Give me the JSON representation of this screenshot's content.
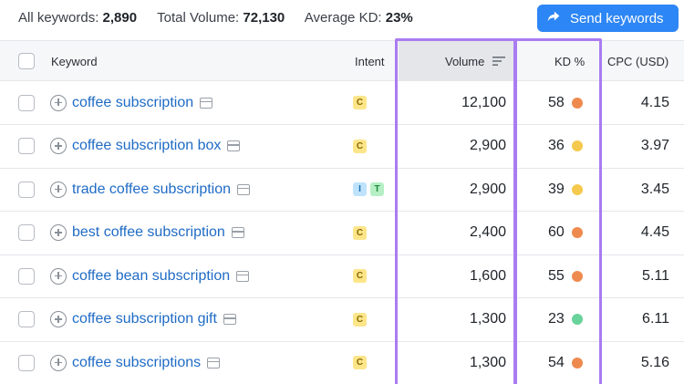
{
  "summary": {
    "all_keywords_label": "All keywords:",
    "all_keywords_value": "2,890",
    "total_volume_label": "Total Volume:",
    "total_volume_value": "72,130",
    "avg_kd_label": "Average KD:",
    "avg_kd_value": "23%"
  },
  "send_button": {
    "label": "Send keywords",
    "icon": "share-arrow-icon",
    "color": "#2d86f5"
  },
  "table": {
    "headers": {
      "keyword": "Keyword",
      "intent": "Intent",
      "volume": "Volume",
      "kd": "KD %",
      "cpc": "CPC (USD)"
    },
    "sort_icon": "sort-descending-icon",
    "highlight_color": "#a97cf1",
    "kd_colors": {
      "orange": "#ef8a4f",
      "yellow": "#f5c94e",
      "green": "#68d39a"
    },
    "rows": [
      {
        "keyword": "coffee subscription",
        "intents": [
          "C"
        ],
        "volume": "12,100",
        "kd": "58",
        "kd_color": "#ef8a4f",
        "cpc": "4.15"
      },
      {
        "keyword": "coffee subscription box",
        "intents": [
          "C"
        ],
        "volume": "2,900",
        "kd": "36",
        "kd_color": "#f5c94e",
        "cpc": "3.97"
      },
      {
        "keyword": "trade coffee subscription",
        "intents": [
          "I",
          "T"
        ],
        "volume": "2,900",
        "kd": "39",
        "kd_color": "#f5c94e",
        "cpc": "3.45"
      },
      {
        "keyword": "best coffee subscription",
        "intents": [
          "C"
        ],
        "volume": "2,400",
        "kd": "60",
        "kd_color": "#ef8a4f",
        "cpc": "4.45"
      },
      {
        "keyword": "coffee bean subscription",
        "intents": [
          "C"
        ],
        "volume": "1,600",
        "kd": "55",
        "kd_color": "#ef8a4f",
        "cpc": "5.11"
      },
      {
        "keyword": "coffee subscription gift",
        "intents": [
          "C"
        ],
        "volume": "1,300",
        "kd": "23",
        "kd_color": "#68d39a",
        "cpc": "6.11"
      },
      {
        "keyword": "coffee subscriptions",
        "intents": [
          "C"
        ],
        "volume": "1,300",
        "kd": "54",
        "kd_color": "#ef8a4f",
        "cpc": "5.16"
      }
    ]
  }
}
